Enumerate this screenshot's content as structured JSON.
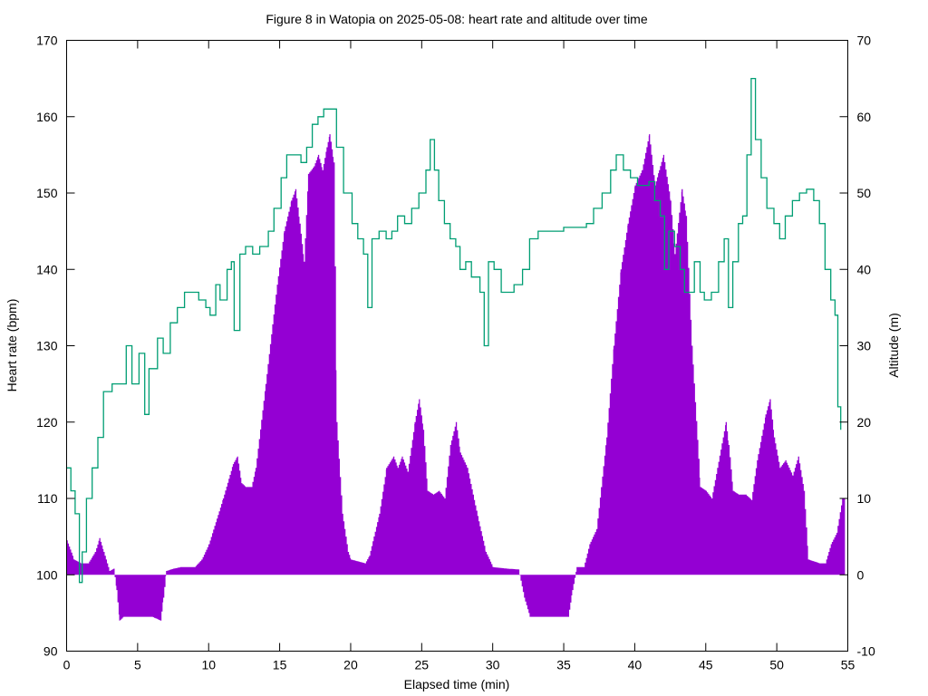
{
  "chart_data": {
    "type": "area+line",
    "title": "Figure 8 in Watopia on 2025-05-08: heart rate and altitude over time",
    "xlabel": "Elapsed time (min)",
    "ylabel": "Heart rate (bpm)",
    "y2label": "Altitude (m)",
    "xlim": [
      0,
      55
    ],
    "ylim": [
      90,
      170
    ],
    "y2lim": [
      -10,
      70
    ],
    "xticks": [
      "0",
      "5",
      "10",
      "15",
      "20",
      "25",
      "30",
      "35",
      "40",
      "45",
      "50",
      "55"
    ],
    "yticks": [
      "90",
      "100",
      "110",
      "120",
      "130",
      "140",
      "150",
      "160",
      "170"
    ],
    "y2ticks": [
      "-10",
      "0",
      "10",
      "20",
      "30",
      "40",
      "50",
      "60",
      "70"
    ],
    "grid": false,
    "legend": "none",
    "series": [
      {
        "name": "Heart rate (bpm)",
        "axis": "y",
        "style": "filled to 100 bpm baseline",
        "color": "#9400d3",
        "x": [
          0,
          0.5,
          1,
          1.5,
          2,
          2.3,
          2.6,
          3,
          3.3,
          3.5,
          3.7,
          4,
          5,
          6,
          6.6,
          6.8,
          7,
          7.5,
          8,
          9,
          9.5,
          10,
          11,
          11.7,
          12,
          12.3,
          12.6,
          13,
          13.3,
          14,
          14.8,
          15.3,
          15.8,
          16.1,
          16.4,
          16.7,
          17,
          17.4,
          17.7,
          18,
          18.3,
          18.5,
          18.8,
          19,
          19.4,
          19.8,
          20,
          21,
          21.3,
          22,
          22.5,
          23,
          23.3,
          23.6,
          24,
          24.5,
          24.8,
          25.1,
          25.4,
          25.8,
          26.2,
          26.6,
          27,
          27.4,
          27.7,
          28.2,
          29,
          29.5,
          30,
          31,
          31.8,
          32.2,
          32.6,
          34,
          35.3,
          35.6,
          35.9,
          36.4,
          36.8,
          37.3,
          38,
          38.5,
          39,
          39.5,
          40,
          40.5,
          41,
          41.4,
          41.7,
          42,
          42.5,
          42.8,
          43.3,
          43.6,
          44,
          44.6,
          45,
          45.4,
          45.8,
          46.2,
          46.4,
          46.6,
          46.9,
          47.3,
          47.8,
          48.2,
          48.6,
          49.2,
          49.5,
          49.8,
          50.2,
          50.6,
          51.1,
          51.5,
          51.9,
          52.2,
          53,
          53.4,
          53.8,
          54.2,
          54.6,
          54.8
        ],
        "values": [
          104.5,
          102,
          101.5,
          101.5,
          103,
          104.8,
          103,
          100.5,
          100.8,
          98,
          94,
          94.5,
          94.5,
          94.5,
          94,
          97,
          100.5,
          100.8,
          101,
          101,
          102,
          104,
          110,
          114.5,
          115.5,
          112,
          111.5,
          111.5,
          114,
          125,
          138,
          145,
          149,
          150.5,
          146,
          141,
          152.5,
          153.5,
          155,
          153,
          156,
          157.7,
          154,
          120,
          108,
          103,
          102,
          101.5,
          102.5,
          108,
          114,
          115.5,
          114,
          115.5,
          113.5,
          120,
          123,
          119,
          111,
          110.5,
          111,
          110,
          117,
          120,
          116,
          114,
          107,
          103,
          101,
          100.8,
          100.7,
          97,
          94.5,
          94.5,
          94.5,
          98,
          101,
          101,
          104,
          106,
          118,
          130,
          140,
          146,
          151,
          153,
          157.7,
          151,
          153,
          155,
          149,
          142,
          150.5,
          147,
          130,
          111.5,
          111,
          110,
          114,
          118,
          120,
          117,
          111,
          110.5,
          110.5,
          109.8,
          115,
          121,
          123,
          118,
          114,
          115,
          113,
          115.5,
          111,
          102,
          101.5,
          101.5,
          104,
          105.5,
          110,
          110
        ]
      },
      {
        "name": "Altitude (m)",
        "axis": "y2",
        "style": "step line",
        "color": "#009e73",
        "x": [
          0,
          0.3,
          0.6,
          0.9,
          1.1,
          1.4,
          1.8,
          2.2,
          2.6,
          3.2,
          3.9,
          4.2,
          4.6,
          5.1,
          5.5,
          5.8,
          6.4,
          6.8,
          7.3,
          7.8,
          8.3,
          9.3,
          9.8,
          10.1,
          10.5,
          10.8,
          11.3,
          11.6,
          11.8,
          12.2,
          12.6,
          13.1,
          13.6,
          14.2,
          14.6,
          15.1,
          15.5,
          16.2,
          16.5,
          16.9,
          17.3,
          17.7,
          18.1,
          18.5,
          19,
          19.5,
          20.1,
          20.5,
          20.9,
          21.2,
          21.5,
          22,
          22.5,
          22.9,
          23.3,
          23.8,
          24.3,
          24.8,
          25.3,
          25.6,
          25.9,
          26.2,
          26.6,
          27,
          27.4,
          27.7,
          28.1,
          28.5,
          29.1,
          29.4,
          29.7,
          30.1,
          30.6,
          31.1,
          31.5,
          32.1,
          32.6,
          33.2,
          34.2,
          35,
          36,
          36.6,
          37.1,
          37.7,
          38.3,
          38.7,
          39.2,
          39.7,
          40.2,
          40.6,
          41,
          41.4,
          41.8,
          42.1,
          42.4,
          42.8,
          43.2,
          43.5,
          43.9,
          44.2,
          44.6,
          44.9,
          45.4,
          45.9,
          46.3,
          46.6,
          46.9,
          47.3,
          47.6,
          47.9,
          48.2,
          48.5,
          48.9,
          49.3,
          49.8,
          50.2,
          50.6,
          51.1,
          51.6,
          52.1,
          52.6,
          53,
          53.4,
          53.8,
          54.1,
          54.3,
          54.5
        ],
        "values": [
          14,
          11,
          8,
          -1,
          3,
          10,
          14,
          18,
          24,
          25,
          25,
          30,
          25,
          29,
          21,
          27,
          31,
          29,
          33,
          35,
          37,
          36,
          35,
          34,
          38,
          36,
          40,
          41,
          32,
          42,
          43,
          42,
          43,
          45,
          48,
          52,
          55,
          55,
          54,
          56,
          59,
          60,
          61,
          61,
          56,
          50,
          46,
          44,
          42,
          35,
          44,
          45,
          44,
          45,
          47,
          46,
          48,
          50,
          53,
          57,
          53,
          49,
          46,
          44,
          43,
          40,
          41,
          39,
          37,
          30,
          41,
          40,
          37,
          37,
          38,
          40,
          44,
          45,
          45,
          45.5,
          45.5,
          46,
          48,
          50,
          53,
          55,
          53,
          52,
          51,
          51,
          51.5,
          49,
          47,
          40,
          45,
          43,
          40,
          37,
          37,
          41,
          37,
          36,
          37,
          41,
          44,
          35,
          41,
          46,
          47,
          55,
          65,
          57,
          52,
          48,
          46,
          44,
          47,
          49,
          50,
          50.5,
          49,
          46,
          40,
          36,
          34,
          22,
          19
        ]
      }
    ]
  }
}
